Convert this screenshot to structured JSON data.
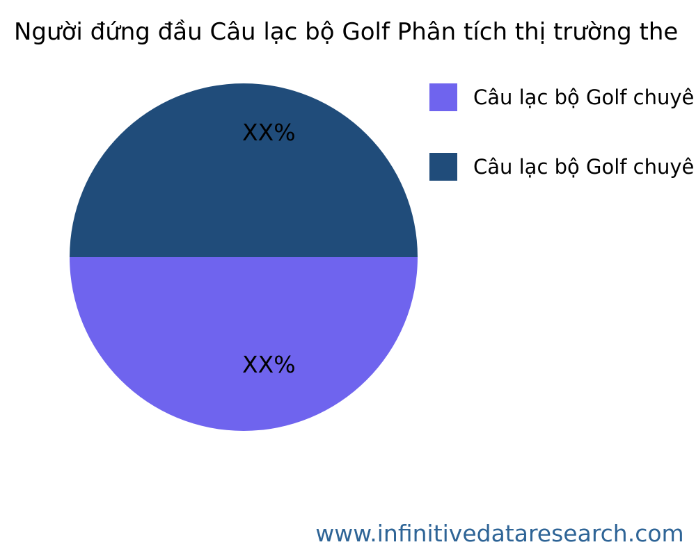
{
  "title": "Người đứng đầu Câu lạc bộ Golf Phân tích thị trường the",
  "colors": {
    "navy": "#204c7a",
    "purple": "#6f64ee",
    "footer": "#2e6496",
    "text": "#000000"
  },
  "pie": {
    "top_slice_label": "XX%",
    "bottom_slice_label": "XX%"
  },
  "legend": {
    "items": [
      {
        "label": "Câu lạc bộ Golf chuyên",
        "color": "#6f64ee"
      },
      {
        "label": "Câu lạc bộ Golf chuyên",
        "color": "#204c7a"
      }
    ]
  },
  "footer": {
    "url": "www.infinitivedataresearch.com"
  },
  "chart_data": {
    "type": "pie",
    "title": "Người đứng đầu Câu lạc bộ Golf Phân tích thị trường the",
    "categories": [
      "Câu lạc bộ Golf chuyên",
      "Câu lạc bộ Golf chuyên"
    ],
    "values": [
      50,
      50
    ],
    "value_labels": [
      "XX%",
      "XX%"
    ],
    "colors": [
      "#6f64ee",
      "#204c7a"
    ],
    "slice_positions": [
      "bottom-half",
      "top-half"
    ],
    "legend_position": "right",
    "source_watermark": "www.infinitivedataresearch.com"
  }
}
